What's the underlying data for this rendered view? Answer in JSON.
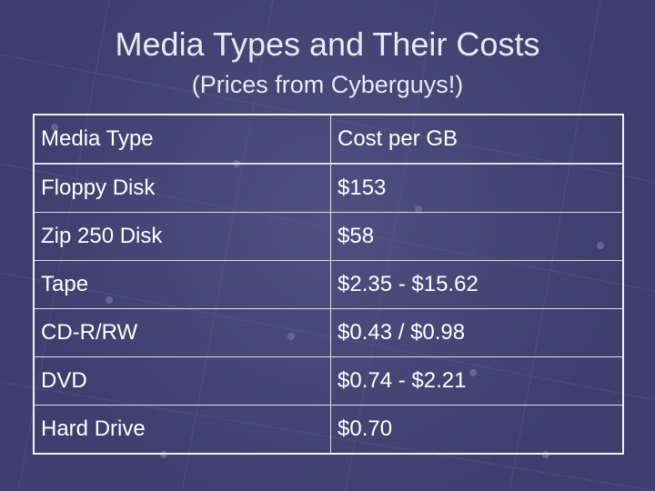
{
  "slide": {
    "title": "Media Types and Their Costs",
    "subtitle": "(Prices from Cyberguys!)"
  },
  "table": {
    "columns": [
      "Media Type",
      "Cost per GB"
    ],
    "rows": [
      [
        "Floppy Disk",
        "$153"
      ],
      [
        "Zip 250 Disk",
        "$58"
      ],
      [
        "Tape",
        "$2.35 - $15.62"
      ],
      [
        "CD-R/RW",
        "$0.43 / $0.98"
      ],
      [
        "DVD",
        "$0.74 - $2.21"
      ],
      [
        "Hard Drive",
        "$0.70"
      ]
    ]
  },
  "colors": {
    "background": "#3e3f6e",
    "text": "#ffffff",
    "table_border": "#f2f2f2"
  }
}
